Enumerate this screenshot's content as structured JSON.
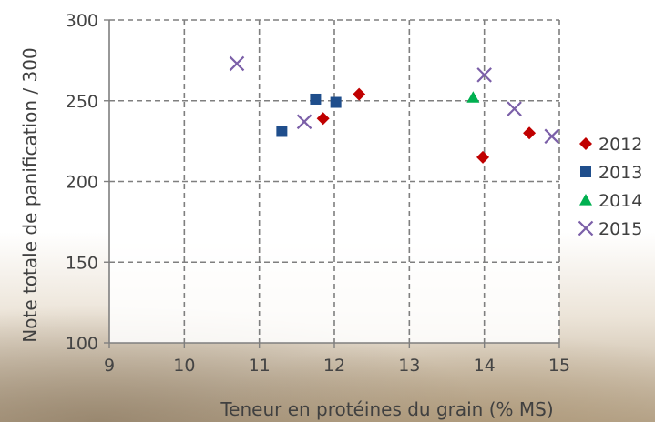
{
  "chart_data": {
    "type": "scatter",
    "xlabel": "Teneur en protéines du grain (% MS)",
    "ylabel": "Note totale de panification / 300",
    "xlim": [
      9,
      15
    ],
    "ylim": [
      100,
      300
    ],
    "x_ticks": [
      9,
      10,
      11,
      12,
      13,
      14,
      15
    ],
    "y_ticks": [
      100,
      150,
      200,
      250,
      300
    ],
    "grid": true,
    "legend_position": "right",
    "series": [
      {
        "name": "2012",
        "marker": "diamond",
        "color": "#c00000",
        "points": [
          [
            11.85,
            239
          ],
          [
            12.33,
            254
          ],
          [
            13.98,
            215
          ],
          [
            14.6,
            230
          ]
        ]
      },
      {
        "name": "2013",
        "marker": "square",
        "color": "#1f4e8c",
        "points": [
          [
            11.3,
            231
          ],
          [
            11.75,
            251
          ],
          [
            12.02,
            249
          ]
        ]
      },
      {
        "name": "2014",
        "marker": "triangle",
        "color": "#00b050",
        "points": [
          [
            13.85,
            252
          ]
        ]
      },
      {
        "name": "2015",
        "marker": "x",
        "color": "#7b5fa8",
        "points": [
          [
            10.7,
            273
          ],
          [
            11.6,
            237
          ],
          [
            14.0,
            266
          ],
          [
            14.4,
            245
          ],
          [
            14.9,
            228
          ]
        ]
      }
    ]
  }
}
